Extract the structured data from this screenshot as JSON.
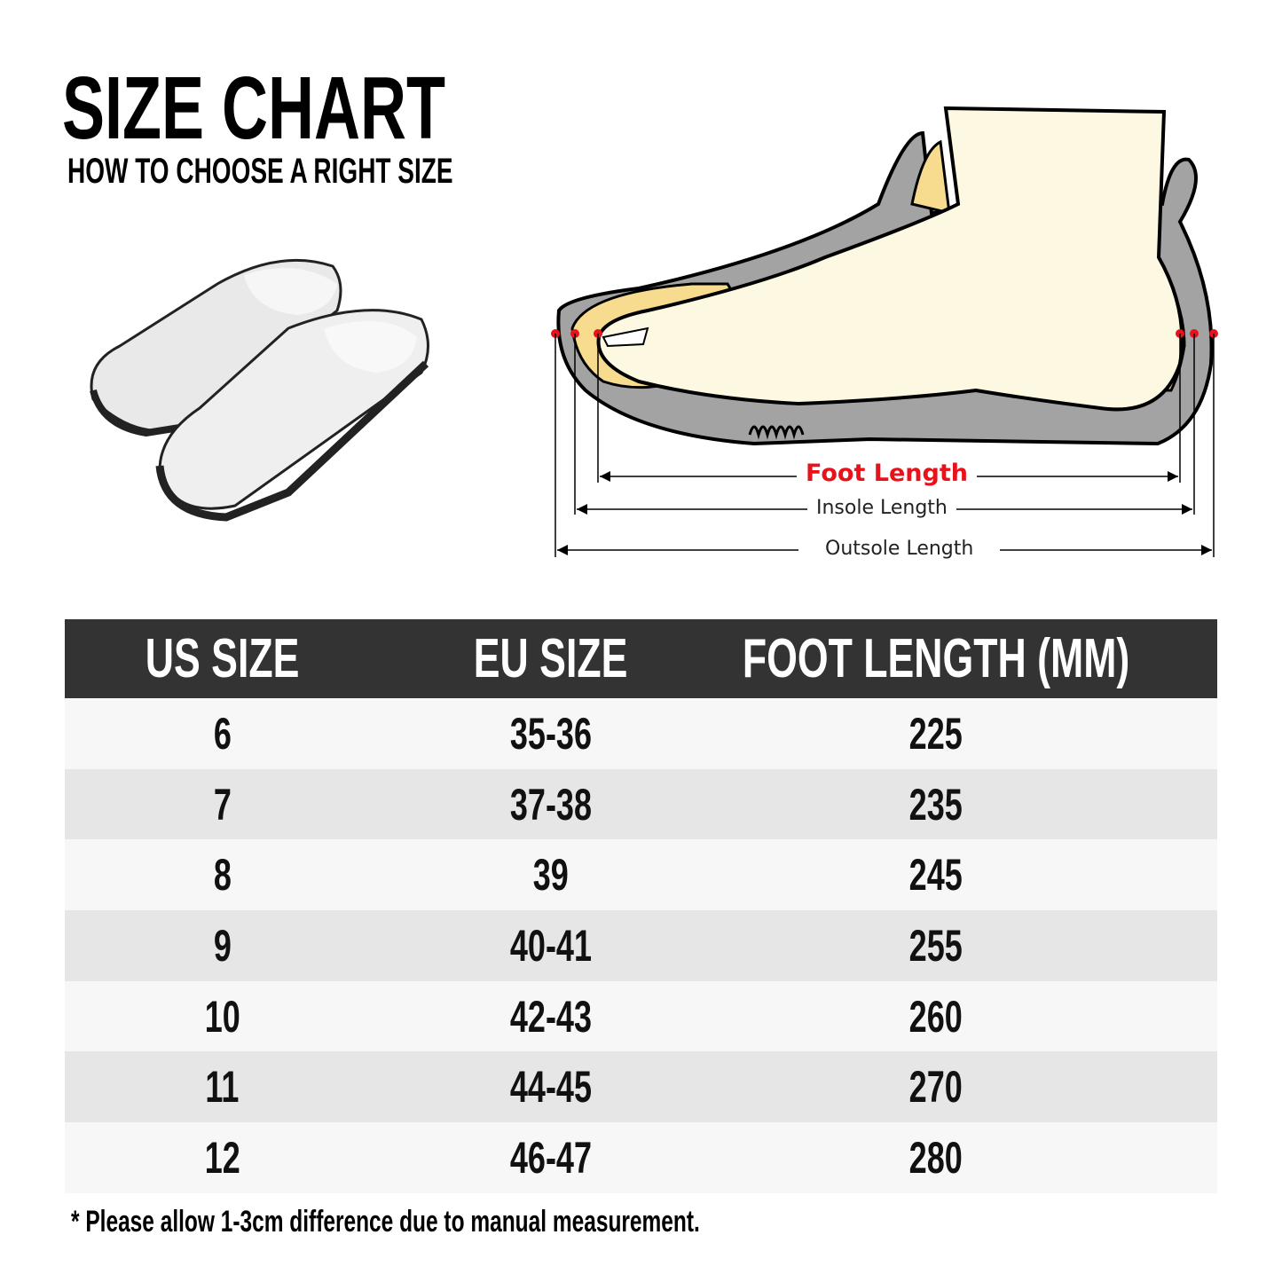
{
  "header": {
    "title": "SIZE CHART",
    "subtitle": "HOW TO CHOOSE A RIGHT SIZE"
  },
  "diagram": {
    "foot_length_label": "Foot Length",
    "insole_length_label": "Insole Length",
    "outsole_length_label": "Outsole Length",
    "accent_color": "#e8121a"
  },
  "table": {
    "columns": [
      "US SIZE",
      "EU SIZE",
      "FOOT LENGTH (MM)"
    ],
    "rows": [
      [
        "6",
        "35-36",
        "225"
      ],
      [
        "7",
        "37-38",
        "235"
      ],
      [
        "8",
        "39",
        "245"
      ],
      [
        "9",
        "40-41",
        "255"
      ],
      [
        "10",
        "42-43",
        "260"
      ],
      [
        "11",
        "44-45",
        "270"
      ],
      [
        "12",
        "46-47",
        "280"
      ]
    ]
  },
  "footer": {
    "note": "* Please allow 1-3cm difference due to manual measurement."
  }
}
